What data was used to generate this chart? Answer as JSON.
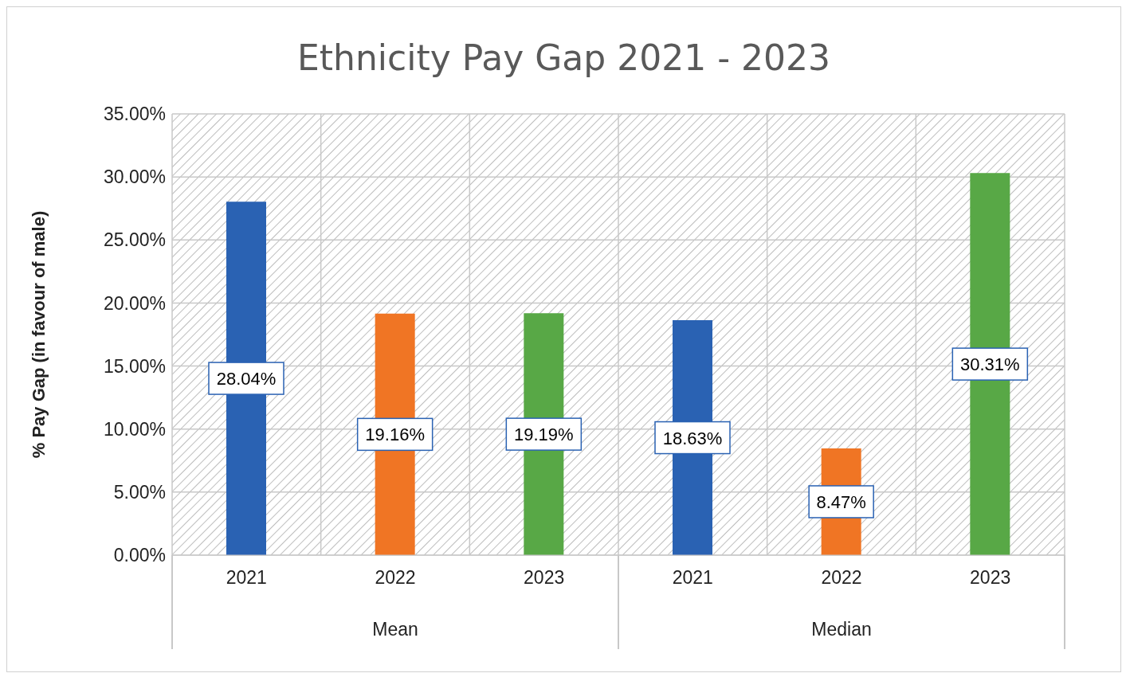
{
  "chart_data": {
    "type": "bar",
    "title": "Ethnicity Pay Gap 2021 - 2023",
    "ylabel": "% Pay Gap (in favour of male)",
    "categories": [
      "2021",
      "2022",
      "2023",
      "2021",
      "2022",
      "2023"
    ],
    "values": [
      28.04,
      19.16,
      19.19,
      18.63,
      8.47,
      30.31
    ],
    "colors": [
      "#2a62b3",
      "#f07524",
      "#58a846",
      "#2a62b3",
      "#f07524",
      "#58a846"
    ],
    "value_labels": [
      "28.04%",
      "19.16%",
      "19.19%",
      "18.63%",
      "8.47%",
      "30.31%"
    ],
    "annotations": [
      "Mean",
      "Median"
    ],
    "ylim": [
      0,
      35
    ],
    "yticks": [
      {
        "value": 0,
        "label": "0.00%"
      },
      {
        "value": 5,
        "label": "5.00%"
      },
      {
        "value": 10,
        "label": "10.00%"
      },
      {
        "value": 15,
        "label": "15.00%"
      },
      {
        "value": 20,
        "label": "20.00%"
      },
      {
        "value": 25,
        "label": "25.00%"
      },
      {
        "value": 30,
        "label": "30.00%"
      },
      {
        "value": 35,
        "label": "35.00%"
      }
    ],
    "grid": true
  }
}
